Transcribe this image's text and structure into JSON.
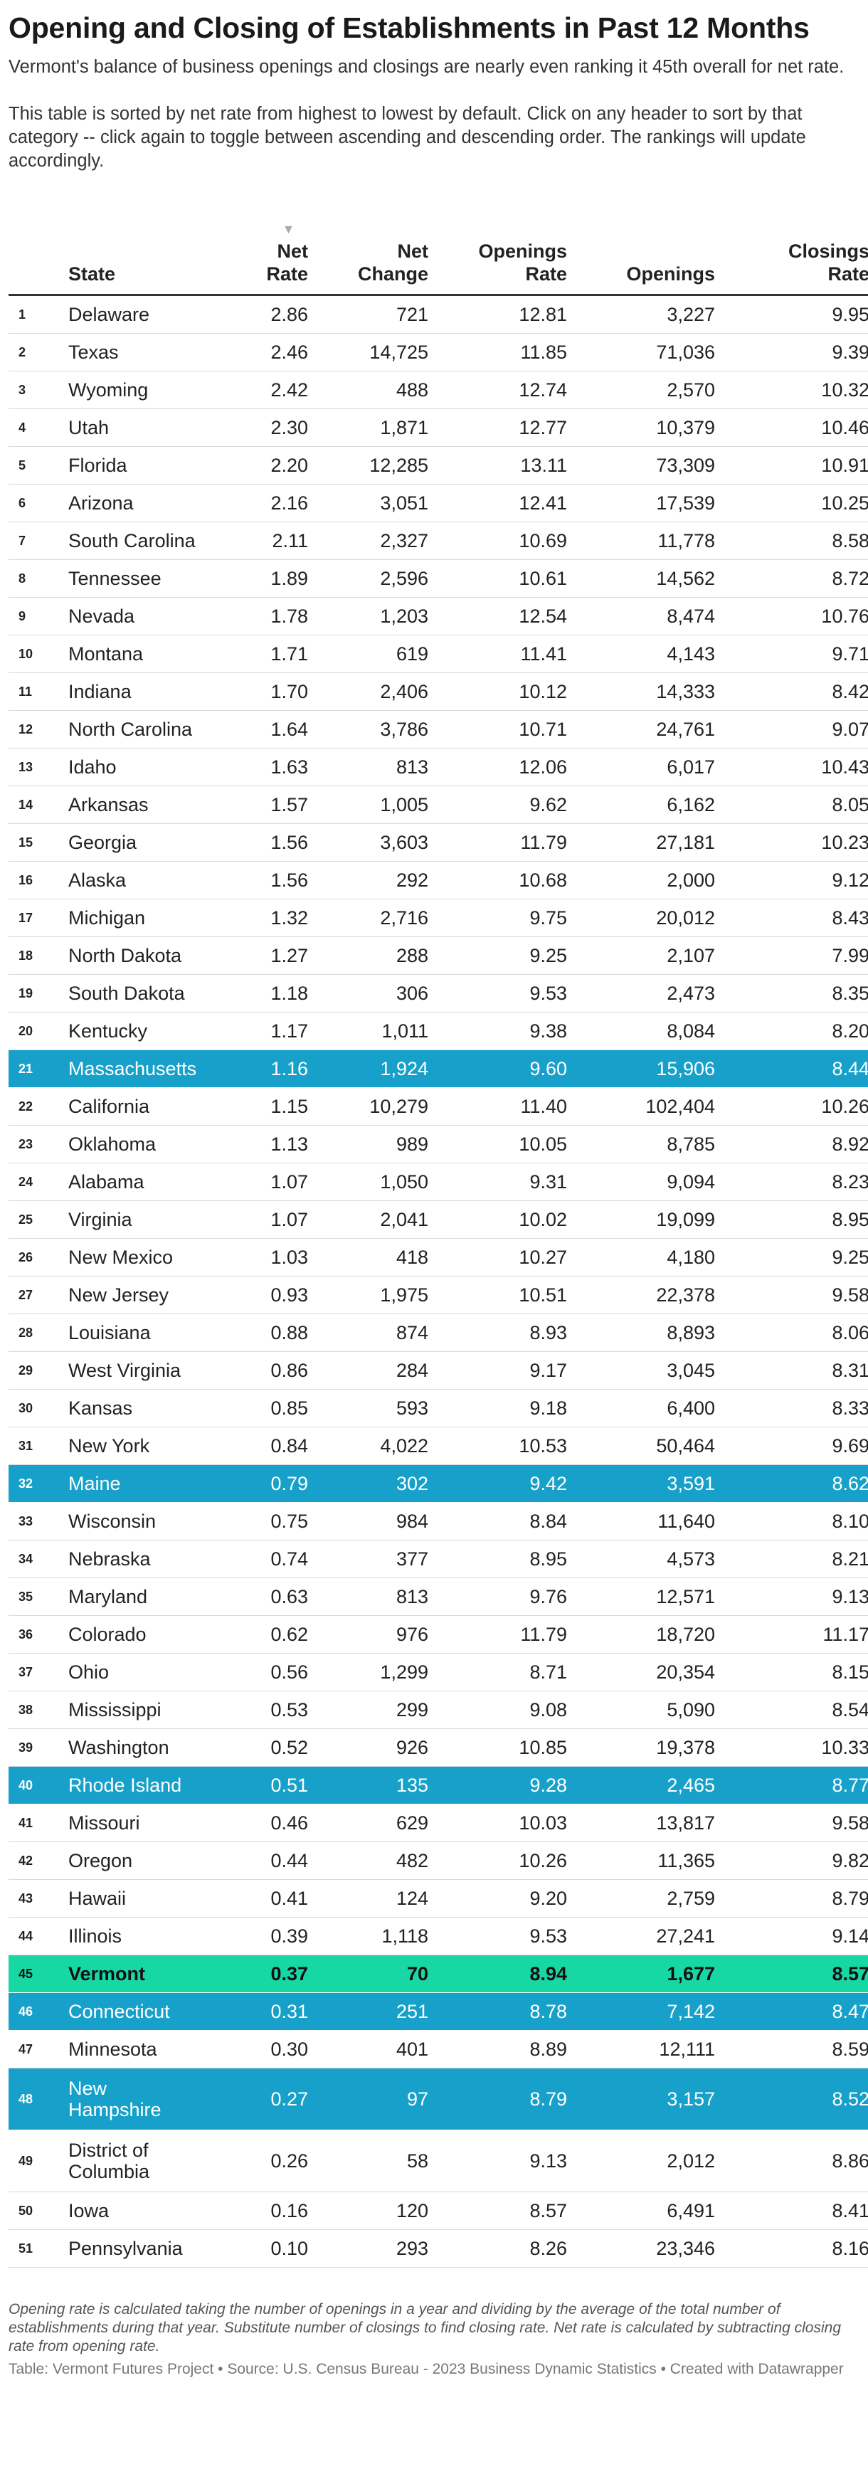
{
  "title": "Opening and Closing of Establishments in Past 12 Months",
  "description_1": "Vermont's balance of business openings and closings are nearly even ranking it 45th overall for net rate.",
  "description_2": "This table is sorted by net rate from highest to lowest by default. Click on any header to sort by that category -- click again to toggle between ascending and descending order. The rankings will update accordingly.",
  "table": {
    "headers": {
      "state": "State",
      "net_rate": "Net\nRate",
      "net_change": "Net\nChange",
      "openings_rate": "Openings\nRate",
      "openings": "Openings",
      "closings_rate": "Closings\nRate"
    },
    "sort_indicator": "▼",
    "colors": {
      "highlight_blue": "#17a1ca",
      "highlight_green": "#17d8a4"
    },
    "rows": [
      {
        "rank": "1",
        "state": "Delaware",
        "net_rate": "2.86",
        "net_change": "721",
        "openings_rate": "12.81",
        "openings": "3,227",
        "closings_rate": "9.95"
      },
      {
        "rank": "2",
        "state": "Texas",
        "net_rate": "2.46",
        "net_change": "14,725",
        "openings_rate": "11.85",
        "openings": "71,036",
        "closings_rate": "9.39"
      },
      {
        "rank": "3",
        "state": "Wyoming",
        "net_rate": "2.42",
        "net_change": "488",
        "openings_rate": "12.74",
        "openings": "2,570",
        "closings_rate": "10.32"
      },
      {
        "rank": "4",
        "state": "Utah",
        "net_rate": "2.30",
        "net_change": "1,871",
        "openings_rate": "12.77",
        "openings": "10,379",
        "closings_rate": "10.46"
      },
      {
        "rank": "5",
        "state": "Florida",
        "net_rate": "2.20",
        "net_change": "12,285",
        "openings_rate": "13.11",
        "openings": "73,309",
        "closings_rate": "10.91"
      },
      {
        "rank": "6",
        "state": "Arizona",
        "net_rate": "2.16",
        "net_change": "3,051",
        "openings_rate": "12.41",
        "openings": "17,539",
        "closings_rate": "10.25"
      },
      {
        "rank": "7",
        "state": "South Carolina",
        "net_rate": "2.11",
        "net_change": "2,327",
        "openings_rate": "10.69",
        "openings": "11,778",
        "closings_rate": "8.58"
      },
      {
        "rank": "8",
        "state": "Tennessee",
        "net_rate": "1.89",
        "net_change": "2,596",
        "openings_rate": "10.61",
        "openings": "14,562",
        "closings_rate": "8.72"
      },
      {
        "rank": "9",
        "state": "Nevada",
        "net_rate": "1.78",
        "net_change": "1,203",
        "openings_rate": "12.54",
        "openings": "8,474",
        "closings_rate": "10.76"
      },
      {
        "rank": "10",
        "state": "Montana",
        "net_rate": "1.71",
        "net_change": "619",
        "openings_rate": "11.41",
        "openings": "4,143",
        "closings_rate": "9.71"
      },
      {
        "rank": "11",
        "state": "Indiana",
        "net_rate": "1.70",
        "net_change": "2,406",
        "openings_rate": "10.12",
        "openings": "14,333",
        "closings_rate": "8.42"
      },
      {
        "rank": "12",
        "state": "North Carolina",
        "net_rate": "1.64",
        "net_change": "3,786",
        "openings_rate": "10.71",
        "openings": "24,761",
        "closings_rate": "9.07"
      },
      {
        "rank": "13",
        "state": "Idaho",
        "net_rate": "1.63",
        "net_change": "813",
        "openings_rate": "12.06",
        "openings": "6,017",
        "closings_rate": "10.43"
      },
      {
        "rank": "14",
        "state": "Arkansas",
        "net_rate": "1.57",
        "net_change": "1,005",
        "openings_rate": "9.62",
        "openings": "6,162",
        "closings_rate": "8.05"
      },
      {
        "rank": "15",
        "state": "Georgia",
        "net_rate": "1.56",
        "net_change": "3,603",
        "openings_rate": "11.79",
        "openings": "27,181",
        "closings_rate": "10.23"
      },
      {
        "rank": "16",
        "state": "Alaska",
        "net_rate": "1.56",
        "net_change": "292",
        "openings_rate": "10.68",
        "openings": "2,000",
        "closings_rate": "9.12"
      },
      {
        "rank": "17",
        "state": "Michigan",
        "net_rate": "1.32",
        "net_change": "2,716",
        "openings_rate": "9.75",
        "openings": "20,012",
        "closings_rate": "8.43"
      },
      {
        "rank": "18",
        "state": "North Dakota",
        "net_rate": "1.27",
        "net_change": "288",
        "openings_rate": "9.25",
        "openings": "2,107",
        "closings_rate": "7.99"
      },
      {
        "rank": "19",
        "state": "South Dakota",
        "net_rate": "1.18",
        "net_change": "306",
        "openings_rate": "9.53",
        "openings": "2,473",
        "closings_rate": "8.35"
      },
      {
        "rank": "20",
        "state": "Kentucky",
        "net_rate": "1.17",
        "net_change": "1,011",
        "openings_rate": "9.38",
        "openings": "8,084",
        "closings_rate": "8.20"
      },
      {
        "rank": "21",
        "state": "Massachusetts",
        "net_rate": "1.16",
        "net_change": "1,924",
        "openings_rate": "9.60",
        "openings": "15,906",
        "closings_rate": "8.44",
        "highlight": "blue"
      },
      {
        "rank": "22",
        "state": "California",
        "net_rate": "1.15",
        "net_change": "10,279",
        "openings_rate": "11.40",
        "openings": "102,404",
        "closings_rate": "10.26"
      },
      {
        "rank": "23",
        "state": "Oklahoma",
        "net_rate": "1.13",
        "net_change": "989",
        "openings_rate": "10.05",
        "openings": "8,785",
        "closings_rate": "8.92"
      },
      {
        "rank": "24",
        "state": "Alabama",
        "net_rate": "1.07",
        "net_change": "1,050",
        "openings_rate": "9.31",
        "openings": "9,094",
        "closings_rate": "8.23"
      },
      {
        "rank": "25",
        "state": "Virginia",
        "net_rate": "1.07",
        "net_change": "2,041",
        "openings_rate": "10.02",
        "openings": "19,099",
        "closings_rate": "8.95"
      },
      {
        "rank": "26",
        "state": "New Mexico",
        "net_rate": "1.03",
        "net_change": "418",
        "openings_rate": "10.27",
        "openings": "4,180",
        "closings_rate": "9.25"
      },
      {
        "rank": "27",
        "state": "New Jersey",
        "net_rate": "0.93",
        "net_change": "1,975",
        "openings_rate": "10.51",
        "openings": "22,378",
        "closings_rate": "9.58"
      },
      {
        "rank": "28",
        "state": "Louisiana",
        "net_rate": "0.88",
        "net_change": "874",
        "openings_rate": "8.93",
        "openings": "8,893",
        "closings_rate": "8.06"
      },
      {
        "rank": "29",
        "state": "West Virginia",
        "net_rate": "0.86",
        "net_change": "284",
        "openings_rate": "9.17",
        "openings": "3,045",
        "closings_rate": "8.31"
      },
      {
        "rank": "30",
        "state": "Kansas",
        "net_rate": "0.85",
        "net_change": "593",
        "openings_rate": "9.18",
        "openings": "6,400",
        "closings_rate": "8.33"
      },
      {
        "rank": "31",
        "state": "New York",
        "net_rate": "0.84",
        "net_change": "4,022",
        "openings_rate": "10.53",
        "openings": "50,464",
        "closings_rate": "9.69"
      },
      {
        "rank": "32",
        "state": "Maine",
        "net_rate": "0.79",
        "net_change": "302",
        "openings_rate": "9.42",
        "openings": "3,591",
        "closings_rate": "8.62",
        "highlight": "blue"
      },
      {
        "rank": "33",
        "state": "Wisconsin",
        "net_rate": "0.75",
        "net_change": "984",
        "openings_rate": "8.84",
        "openings": "11,640",
        "closings_rate": "8.10"
      },
      {
        "rank": "34",
        "state": "Nebraska",
        "net_rate": "0.74",
        "net_change": "377",
        "openings_rate": "8.95",
        "openings": "4,573",
        "closings_rate": "8.21"
      },
      {
        "rank": "35",
        "state": "Maryland",
        "net_rate": "0.63",
        "net_change": "813",
        "openings_rate": "9.76",
        "openings": "12,571",
        "closings_rate": "9.13"
      },
      {
        "rank": "36",
        "state": "Colorado",
        "net_rate": "0.62",
        "net_change": "976",
        "openings_rate": "11.79",
        "openings": "18,720",
        "closings_rate": "11.17"
      },
      {
        "rank": "37",
        "state": "Ohio",
        "net_rate": "0.56",
        "net_change": "1,299",
        "openings_rate": "8.71",
        "openings": "20,354",
        "closings_rate": "8.15"
      },
      {
        "rank": "38",
        "state": "Mississippi",
        "net_rate": "0.53",
        "net_change": "299",
        "openings_rate": "9.08",
        "openings": "5,090",
        "closings_rate": "8.54"
      },
      {
        "rank": "39",
        "state": "Washington",
        "net_rate": "0.52",
        "net_change": "926",
        "openings_rate": "10.85",
        "openings": "19,378",
        "closings_rate": "10.33"
      },
      {
        "rank": "40",
        "state": "Rhode Island",
        "net_rate": "0.51",
        "net_change": "135",
        "openings_rate": "9.28",
        "openings": "2,465",
        "closings_rate": "8.77",
        "highlight": "blue"
      },
      {
        "rank": "41",
        "state": "Missouri",
        "net_rate": "0.46",
        "net_change": "629",
        "openings_rate": "10.03",
        "openings": "13,817",
        "closings_rate": "9.58"
      },
      {
        "rank": "42",
        "state": "Oregon",
        "net_rate": "0.44",
        "net_change": "482",
        "openings_rate": "10.26",
        "openings": "11,365",
        "closings_rate": "9.82"
      },
      {
        "rank": "43",
        "state": "Hawaii",
        "net_rate": "0.41",
        "net_change": "124",
        "openings_rate": "9.20",
        "openings": "2,759",
        "closings_rate": "8.79"
      },
      {
        "rank": "44",
        "state": "Illinois",
        "net_rate": "0.39",
        "net_change": "1,118",
        "openings_rate": "9.53",
        "openings": "27,241",
        "closings_rate": "9.14"
      },
      {
        "rank": "45",
        "state": "Vermont",
        "net_rate": "0.37",
        "net_change": "70",
        "openings_rate": "8.94",
        "openings": "1,677",
        "closings_rate": "8.57",
        "highlight": "green"
      },
      {
        "rank": "46",
        "state": "Connecticut",
        "net_rate": "0.31",
        "net_change": "251",
        "openings_rate": "8.78",
        "openings": "7,142",
        "closings_rate": "8.47",
        "highlight": "blue"
      },
      {
        "rank": "47",
        "state": "Minnesota",
        "net_rate": "0.30",
        "net_change": "401",
        "openings_rate": "8.89",
        "openings": "12,111",
        "closings_rate": "8.59"
      },
      {
        "rank": "48",
        "state": "New\nHampshire",
        "net_rate": "0.27",
        "net_change": "97",
        "openings_rate": "8.79",
        "openings": "3,157",
        "closings_rate": "8.52",
        "highlight": "blue"
      },
      {
        "rank": "49",
        "state": "District of\nColumbia",
        "net_rate": "0.26",
        "net_change": "58",
        "openings_rate": "9.13",
        "openings": "2,012",
        "closings_rate": "8.86"
      },
      {
        "rank": "50",
        "state": "Iowa",
        "net_rate": "0.16",
        "net_change": "120",
        "openings_rate": "8.57",
        "openings": "6,491",
        "closings_rate": "8.41"
      },
      {
        "rank": "51",
        "state": "Pennsylvania",
        "net_rate": "0.10",
        "net_change": "293",
        "openings_rate": "8.26",
        "openings": "23,346",
        "closings_rate": "8.16"
      }
    ]
  },
  "footnote": "Opening rate is calculated taking the number of openings in a year and dividing by the average of the total number of establishments during that year. Substitute number of closings to find closing rate. Net rate is calculated by subtracting closing rate from opening rate.",
  "credit": "Table: Vermont Futures Project • Source: U.S. Census Bureau - 2023 Business Dynamic Statistics • Created with Datawrapper"
}
